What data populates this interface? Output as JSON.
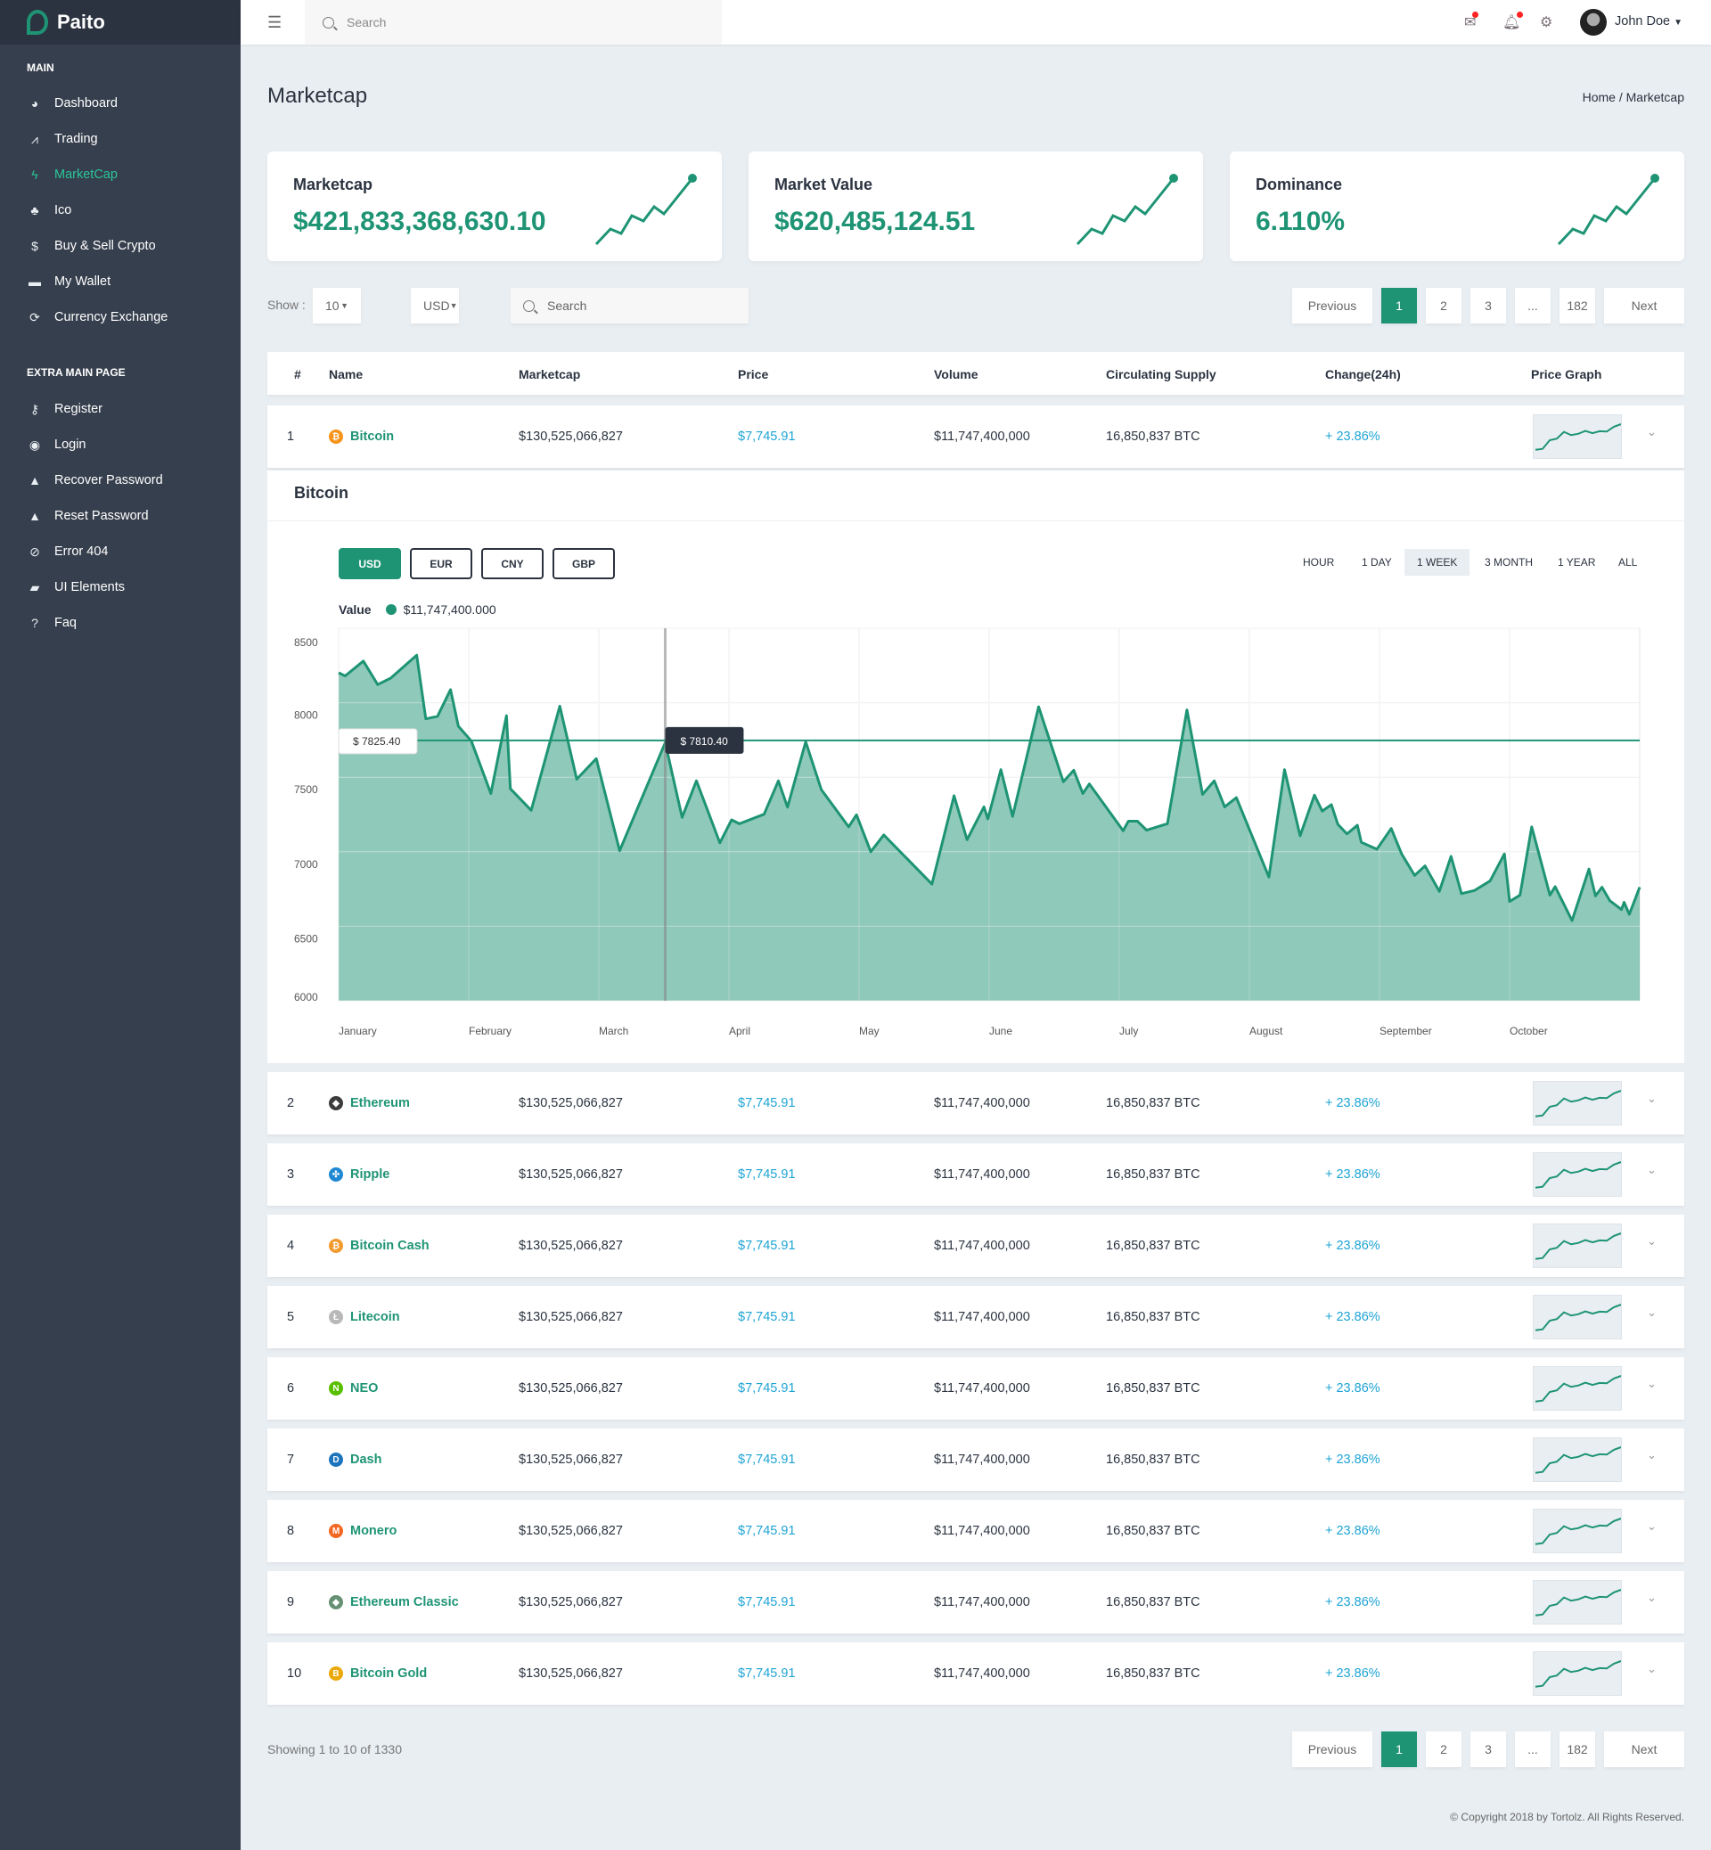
{
  "brand": "Paito",
  "sidebar": {
    "main_label": "MAIN",
    "extra_label": "EXTRA MAIN PAGE",
    "main": [
      {
        "label": "Dashboard",
        "icon": "dashboard-icon"
      },
      {
        "label": "Trading",
        "icon": "chart-line-icon"
      },
      {
        "label": "MarketCap",
        "icon": "bolt-icon",
        "active": true
      },
      {
        "label": "Ico",
        "icon": "sitemap-icon"
      },
      {
        "label": "Buy & Sell Crypto",
        "icon": "coin-hand-icon"
      },
      {
        "label": "My Wallet",
        "icon": "wallet-icon"
      },
      {
        "label": "Currency Exchange",
        "icon": "sync-icon"
      }
    ],
    "extra": [
      {
        "label": "Register",
        "icon": "key-icon"
      },
      {
        "label": "Login",
        "icon": "user-circle-icon"
      },
      {
        "label": "Recover Password",
        "icon": "lock-icon"
      },
      {
        "label": "Reset Password",
        "icon": "lock-icon"
      },
      {
        "label": "Error 404",
        "icon": "ban-icon"
      },
      {
        "label": "UI Elements",
        "icon": "folder-open-icon"
      },
      {
        "label": "Faq",
        "icon": "question-circle-icon"
      }
    ]
  },
  "topbar": {
    "search_placeholder": "Search",
    "user": "John Doe"
  },
  "page": {
    "title": "Marketcap",
    "breadcrumb": "Home / Marketcap"
  },
  "cards": [
    {
      "title": "Marketcap",
      "value": "$421,833,368,630.10"
    },
    {
      "title": "Market Value",
      "value": "$620,485,124.51"
    },
    {
      "title": "Dominance",
      "value": "6.110%"
    }
  ],
  "toolbar": {
    "show_label": "Show :",
    "show_value": "10",
    "currency_value": "USD",
    "search_placeholder": "Search"
  },
  "pagination": {
    "previous": "Previous",
    "pages": [
      "1",
      "2",
      "3",
      "...",
      "182"
    ],
    "current": "1",
    "next": "Next"
  },
  "table": {
    "headers": [
      "#",
      "Name",
      "Marketcap",
      "Price",
      "Volume",
      "Circulating Supply",
      "Change(24h)",
      "Price Graph"
    ],
    "rows": [
      {
        "rank": "1",
        "name": "Bitcoin",
        "marketcap": "$130,525,066,827",
        "price": "$7,745.91",
        "volume": "$11,747,400,000",
        "supply": "16,850,837 BTC",
        "change": "+ 23.86%"
      },
      {
        "rank": "2",
        "name": "Ethereum",
        "marketcap": "$130,525,066,827",
        "price": "$7,745.91",
        "volume": "$11,747,400,000",
        "supply": "16,850,837 BTC",
        "change": "+ 23.86%"
      },
      {
        "rank": "3",
        "name": "Ripple",
        "marketcap": "$130,525,066,827",
        "price": "$7,745.91",
        "volume": "$11,747,400,000",
        "supply": "16,850,837 BTC",
        "change": "+ 23.86%"
      },
      {
        "rank": "4",
        "name": "Bitcoin Cash",
        "marketcap": "$130,525,066,827",
        "price": "$7,745.91",
        "volume": "$11,747,400,000",
        "supply": "16,850,837 BTC",
        "change": "+ 23.86%"
      },
      {
        "rank": "5",
        "name": "Litecoin",
        "marketcap": "$130,525,066,827",
        "price": "$7,745.91",
        "volume": "$11,747,400,000",
        "supply": "16,850,837 BTC",
        "change": "+ 23.86%"
      },
      {
        "rank": "6",
        "name": "NEO",
        "marketcap": "$130,525,066,827",
        "price": "$7,745.91",
        "volume": "$11,747,400,000",
        "supply": "16,850,837 BTC",
        "change": "+ 23.86%"
      },
      {
        "rank": "7",
        "name": "Dash",
        "marketcap": "$130,525,066,827",
        "price": "$7,745.91",
        "volume": "$11,747,400,000",
        "supply": "16,850,837 BTC",
        "change": "+ 23.86%"
      },
      {
        "rank": "8",
        "name": "Monero",
        "marketcap": "$130,525,066,827",
        "price": "$7,745.91",
        "volume": "$11,747,400,000",
        "supply": "16,850,837 BTC",
        "change": "+ 23.86%"
      },
      {
        "rank": "9",
        "name": "Ethereum Classic",
        "marketcap": "$130,525,066,827",
        "price": "$7,745.91",
        "volume": "$11,747,400,000",
        "supply": "16,850,837 BTC",
        "change": "+ 23.86%"
      },
      {
        "rank": "10",
        "name": "Bitcoin Gold",
        "marketcap": "$130,525,066,827",
        "price": "$7,745.91",
        "volume": "$11,747,400,000",
        "supply": "16,850,837 BTC",
        "change": "+ 23.86%"
      }
    ],
    "coin_icons": [
      {
        "glyph": "₿",
        "color": "#f7931a"
      },
      {
        "glyph": "◆",
        "color": "#3c3c3d"
      },
      {
        "glyph": "✣",
        "color": "#1e88d4"
      },
      {
        "glyph": "₿",
        "color": "#f29a2e"
      },
      {
        "glyph": "Ł",
        "color": "#b8b8b8"
      },
      {
        "glyph": "N",
        "color": "#58bf00"
      },
      {
        "glyph": "D",
        "color": "#1c75bc"
      },
      {
        "glyph": "M",
        "color": "#f26822"
      },
      {
        "glyph": "◆",
        "color": "#669073"
      },
      {
        "glyph": "B",
        "color": "#eba809"
      }
    ]
  },
  "sparkline": [
    2,
    2.3,
    5,
    5.5,
    7.6,
    6.6,
    7,
    7.9,
    7.2,
    7.8,
    7.7,
    9.2,
    10
  ],
  "detail": {
    "title": "Bitcoin",
    "currencies": [
      "USD",
      "EUR",
      "CNY",
      "GBP"
    ],
    "active_currency": "USD",
    "ranges": [
      "HOUR",
      "1 DAY",
      "1 WEEK",
      "3 MONTH",
      "1 YEAR",
      "ALL"
    ],
    "active_range": "1 WEEK",
    "legend_label": "Value",
    "legend_value": "$11,747,400.000"
  },
  "chart_data": {
    "type": "area",
    "color": "#1e9474",
    "ylim": [
      6000,
      8500
    ],
    "yticks": [
      8500,
      8000,
      7500,
      7000,
      6500,
      6000
    ],
    "xticks": [
      "January",
      "February",
      "March",
      "April",
      "May",
      "June",
      "July",
      "August",
      "September",
      "October"
    ],
    "points": [
      [
        0,
        8201
      ],
      [
        0.05,
        8180
      ],
      [
        0.19,
        8280
      ],
      [
        0.3,
        8122
      ],
      [
        0.4,
        8165
      ],
      [
        0.6,
        8319
      ],
      [
        0.67,
        7892
      ],
      [
        0.76,
        7909
      ],
      [
        0.86,
        8088
      ],
      [
        0.92,
        7843
      ],
      [
        1.02,
        7743
      ],
      [
        1.17,
        7391
      ],
      [
        1.29,
        7913
      ],
      [
        1.32,
        7423
      ],
      [
        1.48,
        7278
      ],
      [
        1.7,
        7977
      ],
      [
        1.83,
        7487
      ],
      [
        1.98,
        7625
      ],
      [
        2.16,
        7007
      ],
      [
        2.34,
        7380
      ],
      [
        2.51,
        7732
      ],
      [
        2.64,
        7231
      ],
      [
        2.75,
        7476
      ],
      [
        2.93,
        7060
      ],
      [
        3.02,
        7214
      ],
      [
        3.08,
        7188
      ],
      [
        3.27,
        7252
      ],
      [
        3.38,
        7476
      ],
      [
        3.45,
        7299
      ],
      [
        3.59,
        7738
      ],
      [
        3.71,
        7417
      ],
      [
        3.92,
        7167
      ],
      [
        3.98,
        7248
      ],
      [
        4.09,
        7000
      ],
      [
        4.19,
        7113
      ],
      [
        4.56,
        6783
      ],
      [
        4.73,
        7376
      ],
      [
        4.83,
        7081
      ],
      [
        4.96,
        7301
      ],
      [
        4.99,
        7220
      ],
      [
        5.09,
        7551
      ],
      [
        5.18,
        7237
      ],
      [
        5.38,
        7973
      ],
      [
        5.57,
        7470
      ],
      [
        5.65,
        7547
      ],
      [
        5.72,
        7391
      ],
      [
        5.77,
        7455
      ],
      [
        6.03,
        7141
      ],
      [
        6.07,
        7205
      ],
      [
        6.14,
        7205
      ],
      [
        6.21,
        7145
      ],
      [
        6.37,
        7188
      ],
      [
        6.52,
        7952
      ],
      [
        6.64,
        7385
      ],
      [
        6.73,
        7476
      ],
      [
        6.81,
        7301
      ],
      [
        6.9,
        7363
      ],
      [
        7.15,
        6830
      ],
      [
        7.27,
        7551
      ],
      [
        7.39,
        7107
      ],
      [
        7.5,
        7380
      ],
      [
        7.56,
        7273
      ],
      [
        7.63,
        7316
      ],
      [
        7.68,
        7184
      ],
      [
        7.75,
        7120
      ],
      [
        7.83,
        7178
      ],
      [
        7.86,
        7064
      ],
      [
        7.98,
        7017
      ],
      [
        8.09,
        7156
      ],
      [
        8.17,
        6986
      ],
      [
        8.27,
        6841
      ],
      [
        8.35,
        6905
      ],
      [
        8.46,
        6734
      ],
      [
        8.55,
        6969
      ],
      [
        8.63,
        6719
      ],
      [
        8.73,
        6740
      ],
      [
        8.85,
        6804
      ],
      [
        8.96,
        6986
      ],
      [
        9,
        6666
      ],
      [
        9.08,
        6709
      ],
      [
        9.17,
        7167
      ],
      [
        9.31,
        6709
      ],
      [
        9.35,
        6766
      ],
      [
        9.48,
        6538
      ],
      [
        9.61,
        6884
      ],
      [
        9.66,
        6704
      ],
      [
        9.71,
        6762
      ],
      [
        9.77,
        6672
      ],
      [
        9.86,
        6612
      ],
      [
        9.88,
        6661
      ],
      [
        9.92,
        6580
      ],
      [
        10,
        6762
      ]
    ],
    "crosshair": {
      "x": 2.51,
      "y": 7747
    },
    "tooltips": {
      "axis": "$ 7825.40",
      "point": "$ 7810.40"
    }
  },
  "footer": {
    "showing": "Showing 1 to 10 of 1330",
    "copyright": "© Copyright 2018 by Tortolz. All Rights Reserved."
  }
}
